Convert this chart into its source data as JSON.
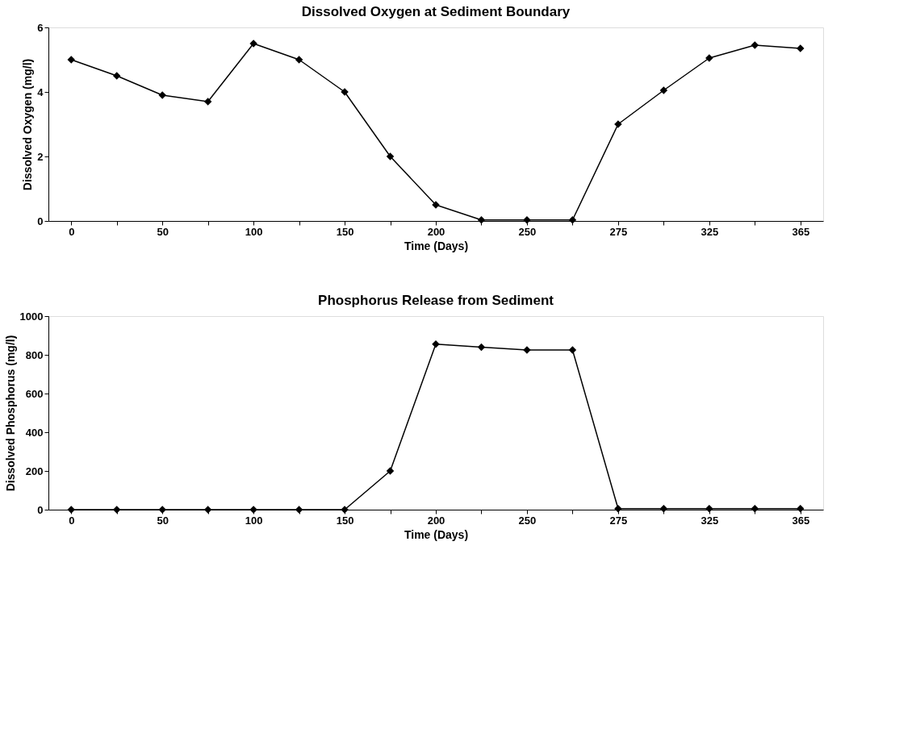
{
  "chart_data": [
    {
      "type": "line",
      "title": "Dissolved Oxygen at Sediment Boundary",
      "xlabel": "Time (Days)",
      "ylabel": "Dissolved Oxygen (mg/l)",
      "categories": [
        "0",
        null,
        "50",
        null,
        "100",
        null,
        "150",
        null,
        "200",
        null,
        "250",
        null,
        "275",
        null,
        "325",
        null,
        "365"
      ],
      "series": [
        {
          "color": "#000000",
          "values": [
            5.0,
            4.5,
            3.9,
            3.7,
            5.5,
            5.0,
            4.0,
            2.0,
            0.5,
            0.03,
            0.03,
            0.03,
            3.0,
            4.05,
            5.05,
            5.45,
            5.35
          ]
        }
      ],
      "ylim": [
        0,
        6
      ],
      "yticks": [
        0,
        2,
        4,
        6
      ],
      "marker": "diamond",
      "line_style": "solid",
      "grid": false
    },
    {
      "type": "line",
      "title": "Phosphorus Release from Sediment",
      "xlabel": "Time (Days)",
      "ylabel": "Dissolved Phosphorus (mg/l)",
      "categories": [
        "0",
        null,
        "50",
        null,
        "100",
        null,
        "150",
        null,
        "200",
        null,
        "250",
        null,
        "275",
        null,
        "325",
        null,
        "365"
      ],
      "series": [
        {
          "color": "#000000",
          "values": [
            0,
            0,
            0,
            0,
            0,
            0,
            0,
            200,
            855,
            840,
            825,
            825,
            5,
            5,
            5,
            5,
            5
          ]
        }
      ],
      "ylim": [
        0,
        1000
      ],
      "yticks": [
        0,
        200,
        400,
        600,
        800,
        1000
      ],
      "marker": "diamond",
      "line_style": "solid",
      "grid": false
    }
  ]
}
